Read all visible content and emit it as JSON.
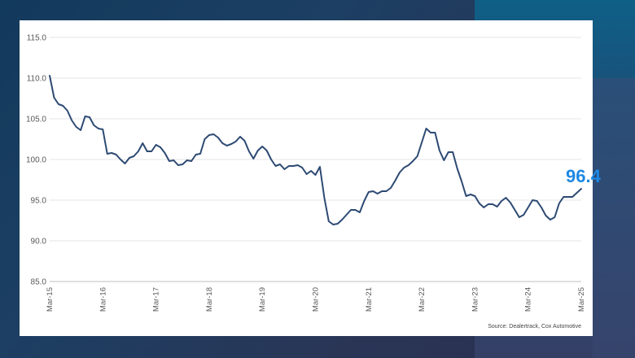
{
  "chart_data": {
    "type": "line",
    "title": "",
    "xlabel": "",
    "ylabel": "",
    "ylim": [
      85,
      115
    ],
    "y_ticks": [
      "115.0",
      "110.0",
      "105.0",
      "100.0",
      "95.0",
      "90.0",
      "85.0"
    ],
    "y_tick_values": [
      115,
      110,
      105,
      100,
      95,
      90,
      85
    ],
    "x_ticks": [
      "Mar-15",
      "Mar-16",
      "Mar-17",
      "Mar-18",
      "Mar-19",
      "Mar-20",
      "Mar-21",
      "Mar-22",
      "Mar-23",
      "Mar-24",
      "Mar-25"
    ],
    "grid": true,
    "line_color": "#2d4a73",
    "label_color": "#1e88e5",
    "series": [
      {
        "start": "Mar-15",
        "end": "Mar-25",
        "frequency": "monthly",
        "values": [
          110.3,
          107.6,
          106.8,
          106.6,
          106.0,
          104.8,
          104.0,
          103.6,
          105.3,
          105.2,
          104.2,
          103.8,
          103.7,
          100.7,
          100.8,
          100.6,
          100.0,
          99.5,
          100.2,
          100.4,
          101.0,
          102.0,
          101.0,
          101.0,
          101.8,
          101.5,
          100.8,
          99.8,
          99.9,
          99.3,
          99.4,
          99.9,
          99.8,
          100.6,
          100.7,
          102.5,
          103.0,
          103.1,
          102.7,
          102.0,
          101.7,
          101.9,
          102.2,
          102.8,
          102.3,
          101.0,
          100.1,
          101.1,
          101.6,
          101.1,
          100.0,
          99.2,
          99.4,
          98.8,
          99.2,
          99.2,
          99.3,
          99.0,
          98.2,
          98.6,
          98.1,
          99.1,
          95.3,
          92.4,
          92.0,
          92.1,
          92.6,
          93.2,
          93.8,
          93.8,
          93.5,
          94.9,
          96.0,
          96.1,
          95.8,
          96.1,
          96.1,
          96.5,
          97.4,
          98.4,
          99.0,
          99.3,
          99.8,
          100.4,
          102.1,
          103.8,
          103.3,
          103.3,
          101.1,
          99.9,
          100.9,
          100.9,
          98.9,
          97.3,
          95.5,
          95.7,
          95.5,
          94.6,
          94.1,
          94.5,
          94.5,
          94.2,
          94.9,
          95.3,
          94.7,
          93.8,
          92.9,
          93.2,
          94.1,
          95.0,
          94.9,
          94.1,
          93.1,
          92.6,
          92.9,
          94.6,
          95.4,
          95.4,
          95.4,
          95.9,
          96.4
        ]
      }
    ],
    "last_value_label": "96.4",
    "source": "Source: Dealertrack, Cox Automotive"
  }
}
